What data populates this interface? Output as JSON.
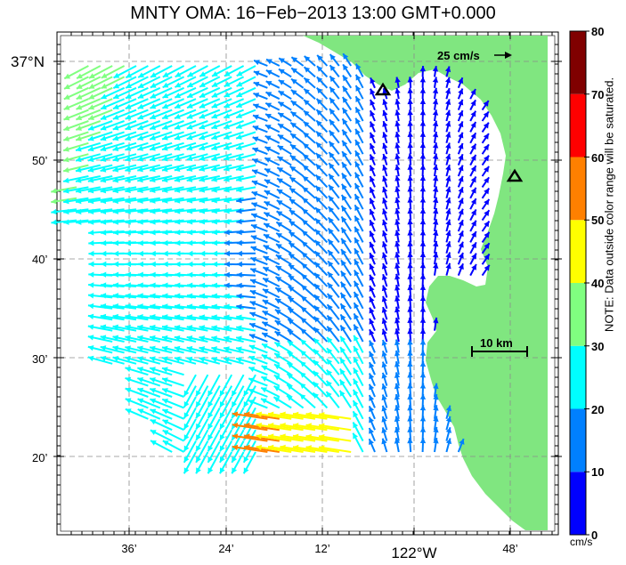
{
  "title": "MNTY OMA: 16−Feb−2013 13:00 GMT+0.000",
  "axes": {
    "y_labels": [
      {
        "text": "37°N",
        "big": true
      },
      {
        "text": "50’"
      },
      {
        "text": "40’"
      },
      {
        "text": "30’"
      },
      {
        "text": "20’"
      }
    ],
    "x_labels": [
      {
        "text": "36’"
      },
      {
        "text": "24’"
      },
      {
        "text": "12’"
      },
      {
        "text": "122°W",
        "big": true
      },
      {
        "text": "48’"
      }
    ]
  },
  "scale_arrow_label": "25 cm/s",
  "scale_bar_label": "10 km",
  "colorbar": {
    "ticks": [
      "0",
      "10",
      "20",
      "30",
      "40",
      "50",
      "60",
      "70",
      "80"
    ],
    "units": "cm/s",
    "colors": [
      "#0000ff",
      "#0080ff",
      "#00ffff",
      "#80ff80",
      "#ffff00",
      "#ff8000",
      "#ff0000",
      "#800000"
    ]
  },
  "note": "NOTE: Data outside color range will be saturated.",
  "stations": [
    "station-north",
    "station-east"
  ],
  "land_color": "#80e680"
}
